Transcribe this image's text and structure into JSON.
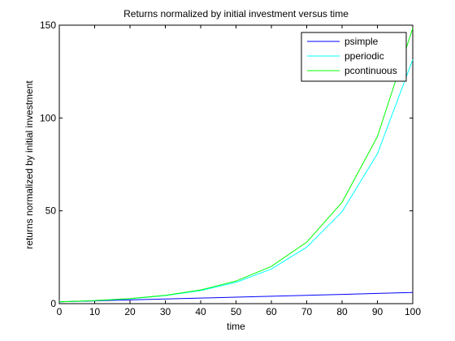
{
  "chart_data": {
    "type": "line",
    "title": "Returns normalized by initial investment versus time",
    "xlabel": "time",
    "ylabel": "returns normalized by initial investment",
    "xlim": [
      0,
      100
    ],
    "ylim": [
      0,
      150
    ],
    "xticks": [
      0,
      10,
      20,
      30,
      40,
      50,
      60,
      70,
      80,
      90,
      100
    ],
    "yticks": [
      0,
      50,
      100,
      150
    ],
    "grid": false,
    "legend_position": "top-right",
    "x": [
      0,
      10,
      20,
      30,
      40,
      50,
      60,
      70,
      80,
      90,
      100
    ],
    "series": [
      {
        "name": "psimple",
        "color": "#0000ff",
        "values": [
          1,
          1.5,
          2,
          2.5,
          3,
          3.5,
          4,
          4.5,
          5,
          5.5,
          6
        ]
      },
      {
        "name": "pperiodic",
        "color": "#00ffff",
        "values": [
          1,
          1.63,
          2.65,
          4.32,
          7.04,
          11.47,
          18.68,
          30.43,
          49.56,
          80.73,
          131.5
        ]
      },
      {
        "name": "pcontinuous",
        "color": "#00ff00",
        "values": [
          1,
          1.65,
          2.72,
          4.48,
          7.39,
          12.18,
          20.09,
          33.12,
          54.6,
          90.02,
          148.41
        ]
      }
    ]
  }
}
